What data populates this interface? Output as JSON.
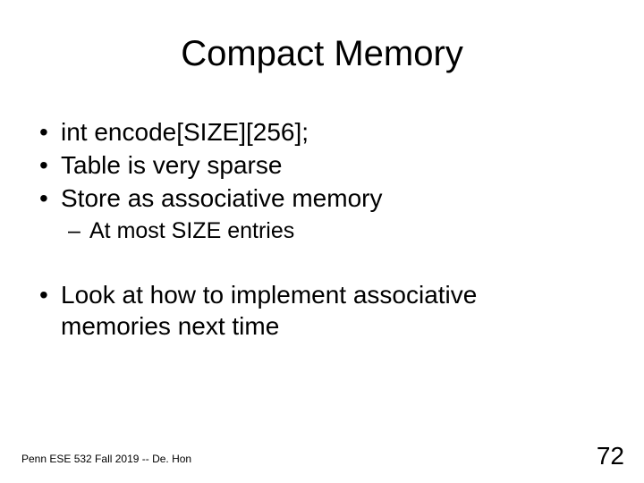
{
  "title": "Compact Memory",
  "bullets": {
    "b1": "int encode[SIZE][256];",
    "b2": "Table is very sparse",
    "b3": "Store as associative memory",
    "b3_1": "At most SIZE entries",
    "b4a": "Look at how to implement associative",
    "b4b": "memories next time"
  },
  "footer": "Penn ESE 532 Fall 2019 -- De. Hon",
  "page_number": "72",
  "style": {
    "background_color": "#ffffff",
    "text_color": "#000000",
    "title_fontsize": 40,
    "bullet1_fontsize": 28,
    "bullet2_fontsize": 25,
    "footer_fontsize": 12,
    "pagenum_fontsize": 28,
    "font_family": "Arial"
  }
}
